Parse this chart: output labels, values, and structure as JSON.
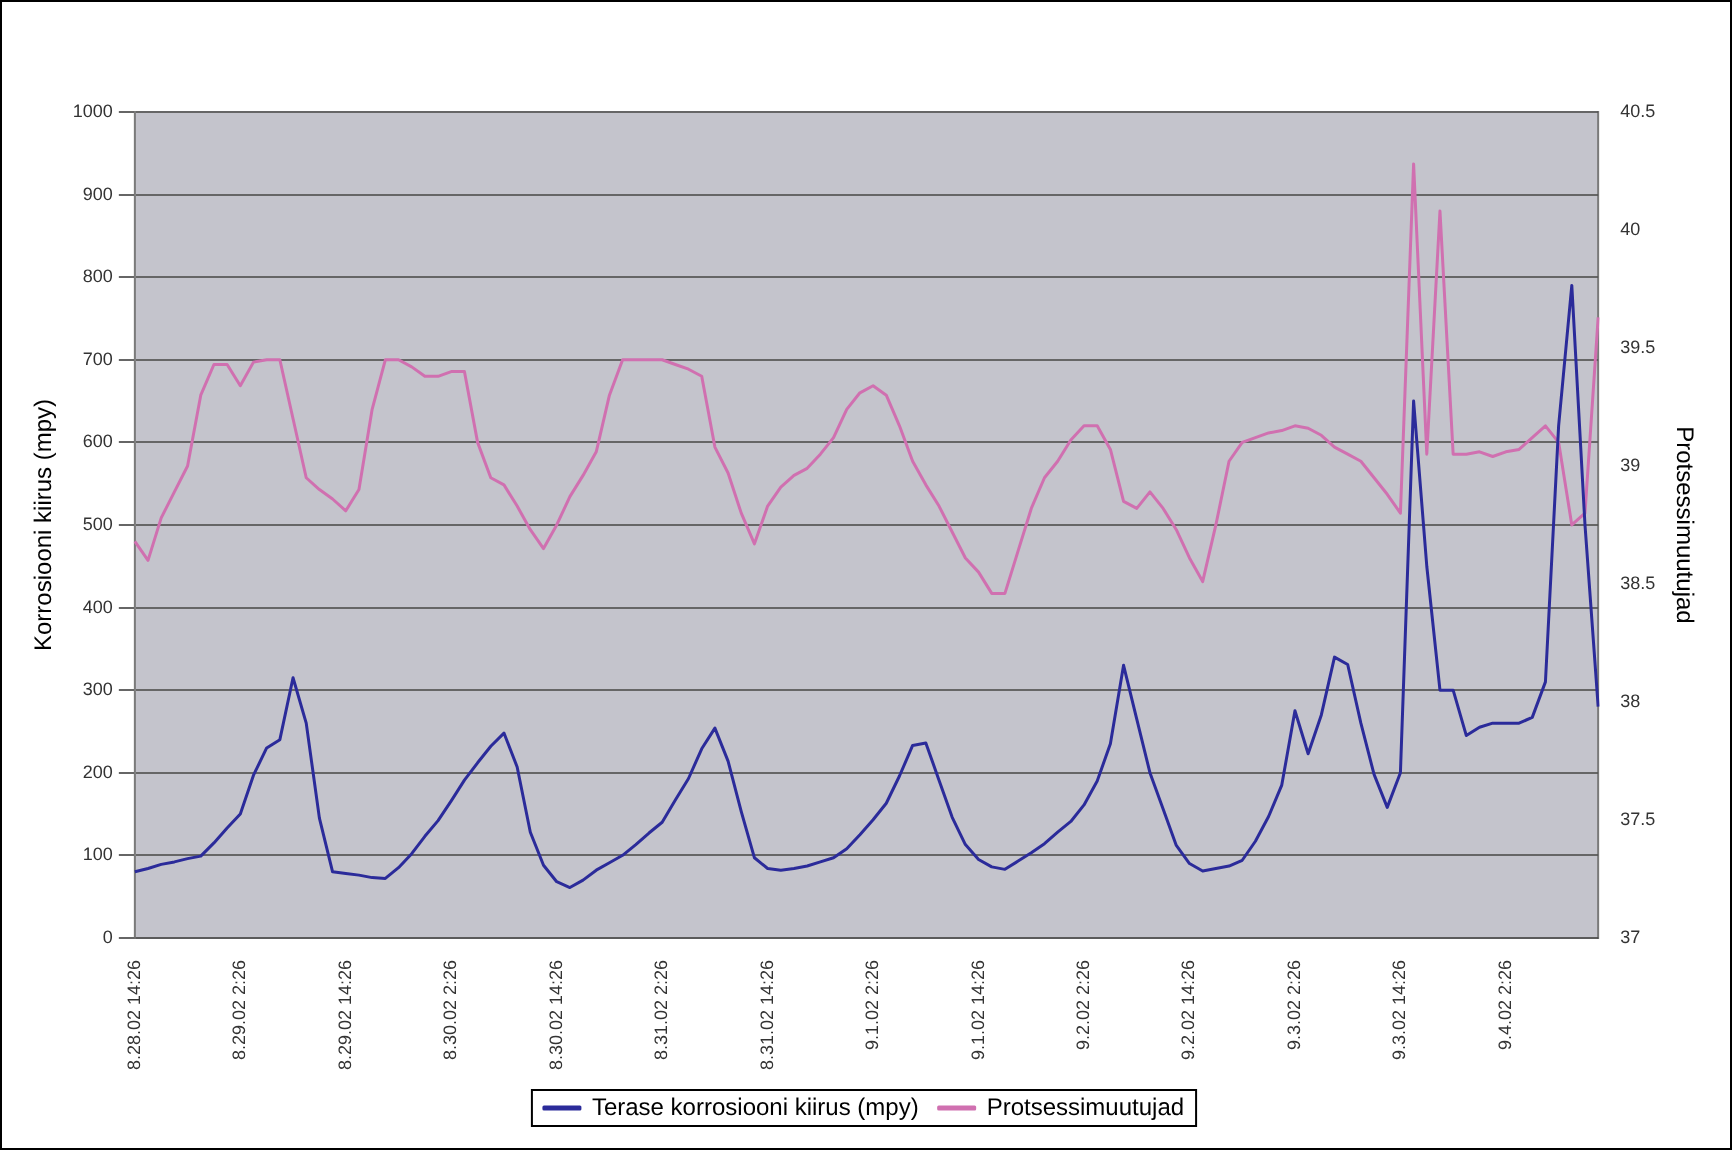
{
  "chart_data": {
    "type": "line",
    "ylabel": "Korrosiooni kiirus (mpy)",
    "y2label": "Protsessimuutujad",
    "categories": [
      "8.28.02 14:26",
      null,
      null,
      null,
      null,
      null,
      null,
      null,
      "8.29.02 2:26",
      null,
      null,
      null,
      null,
      null,
      null,
      null,
      "8.29.02 14:26",
      null,
      null,
      null,
      null,
      null,
      null,
      null,
      "8.30.02 2:26",
      null,
      null,
      null,
      null,
      null,
      null,
      null,
      "8.30.02 14:26",
      null,
      null,
      null,
      null,
      null,
      null,
      null,
      "8.31.02 2:26",
      null,
      null,
      null,
      null,
      null,
      null,
      null,
      "8.31.02 14:26",
      null,
      null,
      null,
      null,
      null,
      null,
      null,
      "9.1.02 2:26",
      null,
      null,
      null,
      null,
      null,
      null,
      null,
      "9.1.02 14:26",
      null,
      null,
      null,
      null,
      null,
      null,
      null,
      "9.2.02 2:26",
      null,
      null,
      null,
      null,
      null,
      null,
      null,
      "9.2.02 14:26",
      null,
      null,
      null,
      null,
      null,
      null,
      null,
      "9.3.02 2:26",
      null,
      null,
      null,
      null,
      null,
      null,
      null,
      "9.3.02 14:26",
      null,
      null,
      null,
      null,
      null,
      null,
      null,
      "9.4.02 2:26",
      null,
      null,
      null,
      null,
      null,
      null,
      null
    ],
    "ylim": [
      0,
      1000
    ],
    "yticks": [
      0,
      100,
      200,
      300,
      400,
      500,
      600,
      700,
      800,
      900,
      1000
    ],
    "y2lim": [
      37,
      40.5
    ],
    "y2ticks": [
      37,
      37.5,
      38,
      38.5,
      39,
      39.5,
      40,
      40.5
    ],
    "grid": "y",
    "legend": "bottom",
    "marker": "none",
    "line_style": "solid",
    "series": [
      {
        "name": "Terase korrosiooni kiirus (mpy)",
        "color": "#2b2b9a",
        "values": [
          80,
          84,
          89,
          92,
          96,
          99,
          115,
          133,
          150,
          197,
          230,
          240,
          315,
          260,
          145,
          80,
          78,
          76,
          73,
          72,
          85,
          102,
          123,
          142,
          166,
          191,
          212,
          232,
          248,
          207,
          128,
          88,
          68,
          61,
          70,
          82,
          91,
          100,
          113,
          127,
          140,
          167,
          193,
          229,
          254,
          214,
          153,
          97,
          84,
          82,
          84,
          87,
          92,
          97,
          108,
          125,
          143,
          163,
          196,
          233,
          236,
          191,
          146,
          113,
          95,
          86,
          83,
          93,
          103,
          114,
          128,
          141,
          161,
          190,
          235,
          330,
          265,
          200,
          156,
          112,
          90,
          81,
          84,
          87,
          94,
          117,
          147,
          185,
          275,
          223,
          270,
          340,
          331,
          260,
          198,
          158,
          200,
          650,
          450,
          300,
          300,
          245,
          255,
          260,
          260,
          260,
          267,
          310,
          620,
          790,
          500,
          280
        ]
      },
      {
        "name": "Protsessimuutujad",
        "color": "#d070b0",
        "axis": "y2",
        "values": [
          38.68,
          38.6,
          38.78,
          38.89,
          39.0,
          39.3,
          39.43,
          39.43,
          39.34,
          39.44,
          39.45,
          39.45,
          39.2,
          38.95,
          38.9,
          38.86,
          38.81,
          38.9,
          39.24,
          39.45,
          39.45,
          39.42,
          39.38,
          39.38,
          39.4,
          39.4,
          39.1,
          38.95,
          38.92,
          38.83,
          38.73,
          38.65,
          38.75,
          38.87,
          38.96,
          39.06,
          39.3,
          39.45,
          39.45,
          39.45,
          39.45,
          39.43,
          39.41,
          39.38,
          39.08,
          38.97,
          38.8,
          38.67,
          38.83,
          38.91,
          38.96,
          38.99,
          39.05,
          39.12,
          39.24,
          39.31,
          39.34,
          39.3,
          39.17,
          39.02,
          38.92,
          38.83,
          38.72,
          38.61,
          38.55,
          38.46,
          38.46,
          38.64,
          38.82,
          38.95,
          39.02,
          39.11,
          39.17,
          39.17,
          39.07,
          38.85,
          38.82,
          38.89,
          38.82,
          38.73,
          38.61,
          38.51,
          38.75,
          39.02,
          39.1,
          39.12,
          39.14,
          39.15,
          39.17,
          39.16,
          39.13,
          39.08,
          39.05,
          39.02,
          38.95,
          38.88,
          38.8,
          40.28,
          39.05,
          40.08,
          39.05,
          39.05,
          39.06,
          39.04,
          39.06,
          39.07,
          39.12,
          39.17,
          39.1,
          38.75,
          38.8,
          39.63
        ]
      }
    ]
  }
}
